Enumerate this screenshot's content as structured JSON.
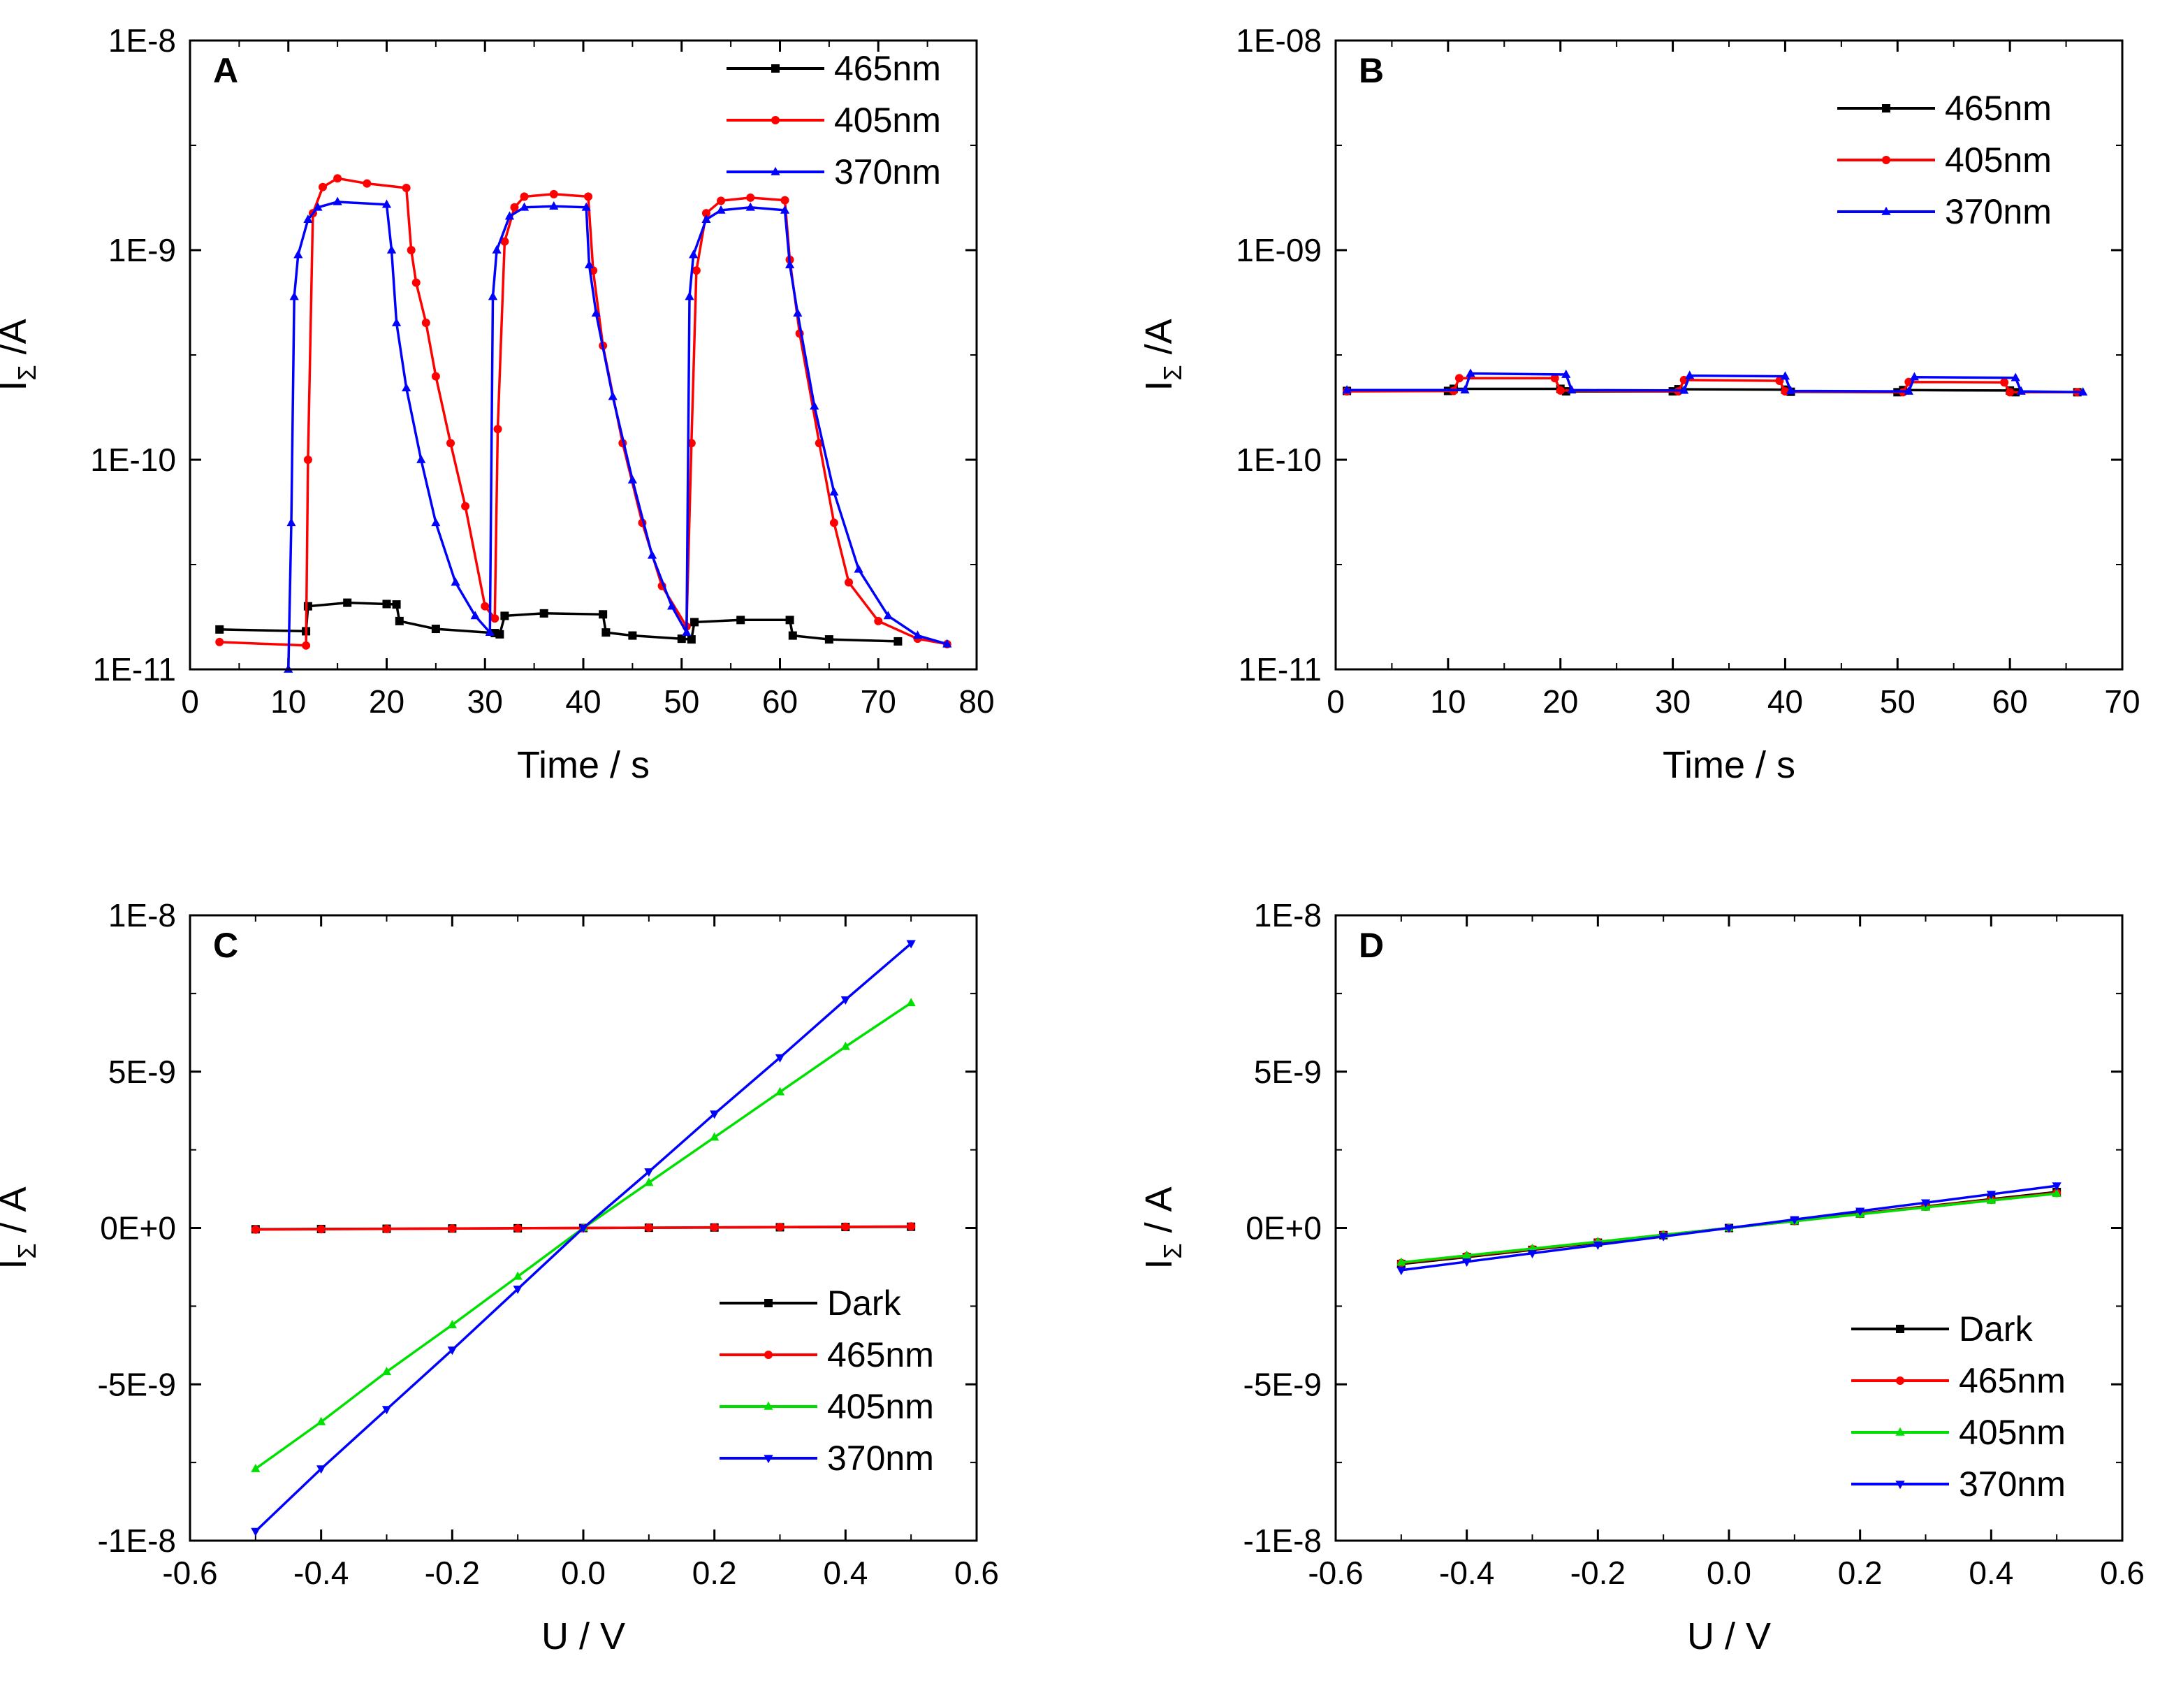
{
  "colors": {
    "black": "#000000",
    "red": "#ff0000",
    "green": "#00e000",
    "blue": "#0000ff"
  },
  "chart_data": [
    {
      "panel": "A",
      "type": "line",
      "scale": "log",
      "xlabel": "Time / s",
      "ylabel_main": "I",
      "ylabel_sub": "Σ",
      "ylabel_tail": " /A",
      "xlim": [
        0,
        80
      ],
      "xticks": [
        "0",
        "10",
        "20",
        "30",
        "40",
        "50",
        "60",
        "70",
        "80"
      ],
      "ylim_log": [
        -11,
        -8
      ],
      "yticks": [
        "1E-11",
        "1E-10",
        "1E-9",
        "1E-8"
      ],
      "legend_position": "top-right",
      "legend": [
        "465nm",
        "405nm",
        "370nm"
      ],
      "series": [
        {
          "name": "465nm",
          "color": "#000000",
          "marker": "square",
          "points": [
            [
              3,
              1.55e-11
            ],
            [
              11.8,
              1.52e-11
            ],
            [
              12,
              2e-11
            ],
            [
              16,
              2.08e-11
            ],
            [
              20,
              2.05e-11
            ],
            [
              21,
              2.04e-11
            ],
            [
              21.3,
              1.7e-11
            ],
            [
              25,
              1.56e-11
            ],
            [
              31,
              1.49e-11
            ],
            [
              31.5,
              1.47e-11
            ],
            [
              32,
              1.8e-11
            ],
            [
              36,
              1.85e-11
            ],
            [
              42,
              1.83e-11
            ],
            [
              42.3,
              1.5e-11
            ],
            [
              45,
              1.45e-11
            ],
            [
              50,
              1.4e-11
            ],
            [
              51,
              1.39e-11
            ],
            [
              51.3,
              1.68e-11
            ],
            [
              56,
              1.72e-11
            ],
            [
              61,
              1.72e-11
            ],
            [
              61.3,
              1.45e-11
            ],
            [
              65,
              1.39e-11
            ],
            [
              72,
              1.36e-11
            ]
          ]
        },
        {
          "name": "405nm",
          "color": "#ff0000",
          "marker": "circle",
          "points": [
            [
              3,
              1.35e-11
            ],
            [
              11.8,
              1.3e-11
            ],
            [
              12,
              1e-10
            ],
            [
              12.5,
              1.5e-09
            ],
            [
              13.5,
              2e-09
            ],
            [
              15,
              2.2e-09
            ],
            [
              18,
              2.08e-09
            ],
            [
              22,
              1.98e-09
            ],
            [
              22.5,
              1e-09
            ],
            [
              23,
              7e-10
            ],
            [
              24,
              4.5e-10
            ],
            [
              25,
              2.5e-10
            ],
            [
              26.5,
              1.2e-10
            ],
            [
              28,
              6e-11
            ],
            [
              30,
              2e-11
            ],
            [
              31,
              1.75e-11
            ],
            [
              31.3,
              1.4e-10
            ],
            [
              32,
              1.1e-09
            ],
            [
              33,
              1.6e-09
            ],
            [
              34,
              1.8e-09
            ],
            [
              37,
              1.85e-09
            ],
            [
              40.5,
              1.8e-09
            ],
            [
              41,
              8e-10
            ],
            [
              42,
              3.5e-10
            ],
            [
              44,
              1.2e-10
            ],
            [
              46,
              5e-11
            ],
            [
              48,
              2.5e-11
            ],
            [
              50.5,
              1.6e-11
            ],
            [
              51,
              1.2e-10
            ],
            [
              51.5,
              8e-10
            ],
            [
              52.5,
              1.5e-09
            ],
            [
              54,
              1.72e-09
            ],
            [
              57,
              1.78e-09
            ],
            [
              60.5,
              1.73e-09
            ],
            [
              61,
              9e-10
            ],
            [
              62,
              4e-10
            ],
            [
              64,
              1.2e-10
            ],
            [
              65.5,
              5e-11
            ],
            [
              67,
              2.6e-11
            ],
            [
              70,
              1.7e-11
            ],
            [
              74,
              1.4e-11
            ],
            [
              77,
              1.32e-11
            ]
          ]
        },
        {
          "name": "370nm",
          "color": "#0000ff",
          "marker": "triangle-up",
          "points": [
            [
              10,
              1e-11
            ],
            [
              10.3,
              5e-11
            ],
            [
              10.6,
              6e-10
            ],
            [
              11,
              9.5e-10
            ],
            [
              12,
              1.4e-09
            ],
            [
              13,
              1.6e-09
            ],
            [
              15,
              1.7e-09
            ],
            [
              20,
              1.65e-09
            ],
            [
              20.5,
              1e-09
            ],
            [
              21,
              4.5e-10
            ],
            [
              22,
              2.2e-10
            ],
            [
              23.5,
              1e-10
            ],
            [
              25,
              5e-11
            ],
            [
              27,
              2.6e-11
            ],
            [
              29,
              1.8e-11
            ],
            [
              30.5,
              1.5e-11
            ],
            [
              30.8,
              6e-10
            ],
            [
              31.2,
              1e-09
            ],
            [
              32.5,
              1.45e-09
            ],
            [
              34,
              1.6e-09
            ],
            [
              37,
              1.62e-09
            ],
            [
              40.3,
              1.6e-09
            ],
            [
              40.6,
              8.5e-10
            ],
            [
              41.3,
              5e-10
            ],
            [
              43,
              2e-10
            ],
            [
              45,
              8e-11
            ],
            [
              47,
              3.5e-11
            ],
            [
              49,
              2e-11
            ],
            [
              50.5,
              1.5e-11
            ],
            [
              50.8,
              6e-10
            ],
            [
              51.2,
              9.5e-10
            ],
            [
              52.5,
              1.4e-09
            ],
            [
              54,
              1.55e-09
            ],
            [
              57,
              1.6e-09
            ],
            [
              60.5,
              1.55e-09
            ],
            [
              61,
              8.5e-10
            ],
            [
              61.8,
              5e-10
            ],
            [
              63.5,
              1.8e-10
            ],
            [
              65.5,
              7e-11
            ],
            [
              68,
              3e-11
            ],
            [
              71,
              1.8e-11
            ],
            [
              74,
              1.45e-11
            ],
            [
              77,
              1.32e-11
            ]
          ]
        }
      ]
    },
    {
      "panel": "B",
      "type": "line",
      "scale": "log",
      "xlabel": "Time / s",
      "ylabel_main": "I",
      "ylabel_sub": "Σ",
      "ylabel_tail": " /A",
      "xlim": [
        0,
        70
      ],
      "xticks": [
        "0",
        "10",
        "20",
        "30",
        "40",
        "50",
        "60",
        "70"
      ],
      "ylim_log": [
        -11,
        -8
      ],
      "yticks": [
        "1E-11",
        "1E-10",
        "1E-09",
        "1E-08"
      ],
      "legend_position": "top-right",
      "legend": [
        "465nm",
        "405nm",
        "370nm"
      ],
      "series": [
        {
          "name": "465nm",
          "color": "#000000",
          "marker": "square",
          "points": [
            [
              1,
              2.13e-10
            ],
            [
              10,
              2.13e-10
            ],
            [
              10.5,
              2.18e-10
            ],
            [
              20,
              2.18e-10
            ],
            [
              20.5,
              2.12e-10
            ],
            [
              30,
              2.12e-10
            ],
            [
              30.5,
              2.17e-10
            ],
            [
              40,
              2.16e-10
            ],
            [
              40.5,
              2.11e-10
            ],
            [
              50,
              2.1e-10
            ],
            [
              50.5,
              2.15e-10
            ],
            [
              60,
              2.14e-10
            ],
            [
              60.5,
              2.1e-10
            ],
            [
              66,
              2.1e-10
            ]
          ]
        },
        {
          "name": "405nm",
          "color": "#ff0000",
          "marker": "circle",
          "points": [
            [
              1,
              2.12e-10
            ],
            [
              10.5,
              2.13e-10
            ],
            [
              11,
              2.45e-10
            ],
            [
              19.5,
              2.45e-10
            ],
            [
              20,
              2.14e-10
            ],
            [
              30.5,
              2.12e-10
            ],
            [
              31,
              2.4e-10
            ],
            [
              39.5,
              2.38e-10
            ],
            [
              40,
              2.12e-10
            ],
            [
              50.5,
              2.1e-10
            ],
            [
              51,
              2.35e-10
            ],
            [
              59.5,
              2.34e-10
            ],
            [
              60,
              2.1e-10
            ],
            [
              66,
              2.1e-10
            ]
          ]
        },
        {
          "name": "370nm",
          "color": "#0000ff",
          "marker": "triangle-up",
          "points": [
            [
              1,
              2.15e-10
            ],
            [
              11.5,
              2.15e-10
            ],
            [
              12,
              2.58e-10
            ],
            [
              20.5,
              2.55e-10
            ],
            [
              21,
              2.15e-10
            ],
            [
              31,
              2.14e-10
            ],
            [
              31.5,
              2.52e-10
            ],
            [
              40,
              2.5e-10
            ],
            [
              40.5,
              2.13e-10
            ],
            [
              51,
              2.12e-10
            ],
            [
              51.5,
              2.48e-10
            ],
            [
              60.5,
              2.46e-10
            ],
            [
              61,
              2.12e-10
            ],
            [
              66.5,
              2.1e-10
            ]
          ]
        }
      ]
    },
    {
      "panel": "C",
      "type": "line",
      "scale": "linear",
      "xlabel": "U / V",
      "ylabel_main": "I",
      "ylabel_sub": "Σ",
      "ylabel_tail": " / A",
      "xlim": [
        -0.6,
        0.6
      ],
      "xticks": [
        "-0.6",
        "-0.4",
        "-0.2",
        "0.0",
        "0.2",
        "0.4",
        "0.6"
      ],
      "ylim": [
        -1e-08,
        1e-08
      ],
      "yticks": [
        "-1E-8",
        "-5E-9",
        "0E+0",
        "5E-9",
        "1E-8"
      ],
      "legend_position": "bottom-right",
      "legend": [
        "Dark",
        "465nm",
        "405nm",
        "370nm"
      ],
      "x": [
        -0.5,
        -0.4,
        -0.3,
        -0.2,
        -0.1,
        0.0,
        0.1,
        0.2,
        0.3,
        0.4,
        0.5
      ],
      "series": [
        {
          "name": "Dark",
          "color": "#000000",
          "marker": "square",
          "values": [
            -4e-11,
            -3.2e-11,
            -2.4e-11,
            -1.6e-11,
            -8e-12,
            0,
            8e-12,
            1.6e-11,
            2.4e-11,
            3.2e-11,
            4e-11
          ]
        },
        {
          "name": "465nm",
          "color": "#ff0000",
          "marker": "circle",
          "values": [
            -5e-11,
            -4e-11,
            -3e-11,
            -2e-11,
            -1e-11,
            0,
            1e-11,
            2e-11,
            3e-11,
            4e-11,
            5e-11
          ]
        },
        {
          "name": "405nm",
          "color": "#00e000",
          "marker": "triangle-up",
          "values": [
            -7.7e-09,
            -6.2e-09,
            -4.6e-09,
            -3.1e-09,
            -1.55e-09,
            0,
            1.45e-09,
            2.9e-09,
            4.35e-09,
            5.8e-09,
            7.2e-09
          ]
        },
        {
          "name": "370nm",
          "color": "#0000ff",
          "marker": "triangle-down",
          "values": [
            -9.7e-09,
            -7.7e-09,
            -5.8e-09,
            -3.9e-09,
            -1.95e-09,
            0,
            1.8e-09,
            3.65e-09,
            5.45e-09,
            7.3e-09,
            9.1e-09
          ]
        }
      ]
    },
    {
      "panel": "D",
      "type": "line",
      "scale": "linear",
      "xlabel": "U / V",
      "ylabel_main": "I",
      "ylabel_sub": "Σ",
      "ylabel_tail": " / A",
      "xlim": [
        -0.6,
        0.6
      ],
      "xticks": [
        "-0.6",
        "-0.4",
        "-0.2",
        "0.0",
        "0.2",
        "0.4",
        "0.6"
      ],
      "ylim": [
        -1e-08,
        1e-08
      ],
      "yticks": [
        "-1E-8",
        "-5E-9",
        "0E+0",
        "5E-9",
        "1E-8"
      ],
      "legend_position": "bottom-right",
      "legend": [
        "Dark",
        "465nm",
        "405nm",
        "370nm"
      ],
      "x": [
        -0.5,
        -0.4,
        -0.3,
        -0.2,
        -0.1,
        0.0,
        0.1,
        0.2,
        0.3,
        0.4,
        0.5
      ],
      "series": [
        {
          "name": "Dark",
          "color": "#000000",
          "marker": "square",
          "values": [
            -1.15e-09,
            -9.3e-10,
            -7e-10,
            -4.7e-10,
            -2.3e-10,
            0,
            2.3e-10,
            4.6e-10,
            6.9e-10,
            9.2e-10,
            1.15e-09
          ]
        },
        {
          "name": "465nm",
          "color": "#ff0000",
          "marker": "circle",
          "values": [
            -1.12e-09,
            -9e-10,
            -6.8e-10,
            -4.5e-10,
            -2.2e-10,
            0,
            2.2e-10,
            4.5e-10,
            6.8e-10,
            9e-10,
            1.12e-09
          ]
        },
        {
          "name": "405nm",
          "color": "#00e000",
          "marker": "triangle-up",
          "values": [
            -1.1e-09,
            -8.8e-10,
            -6.6e-10,
            -4.4e-10,
            -2.2e-10,
            0,
            2.2e-10,
            4.4e-10,
            6.6e-10,
            8.8e-10,
            1.1e-09
          ]
        },
        {
          "name": "370nm",
          "color": "#0000ff",
          "marker": "triangle-down",
          "values": [
            -1.35e-09,
            -1.08e-09,
            -8.1e-10,
            -5.4e-10,
            -2.7e-10,
            0,
            2.7e-10,
            5.4e-10,
            8.1e-10,
            1.08e-09,
            1.35e-09
          ]
        }
      ]
    }
  ]
}
